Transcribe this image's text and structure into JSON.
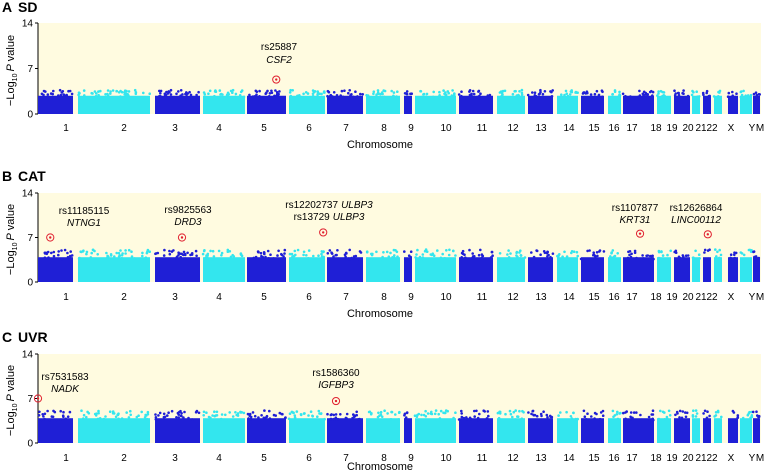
{
  "colors": {
    "dark": "#1f1fd6",
    "light": "#33e6ee",
    "background": "#fffbe0",
    "highlight": "#e0202f"
  },
  "y_label": "Log10 P value",
  "y_label_sign": "−",
  "y_label_base": "Log",
  "y_label_sub": "10",
  "y_label_p": "P",
  "y_label_rest": "value",
  "chart_data": [
    {
      "type": "scatter",
      "panel": "A",
      "title": "SD",
      "xlabel": "Chromosome",
      "ylabel": "−Log10 P value",
      "ylim": [
        0,
        14
      ],
      "yticks": [
        "0",
        "7",
        "14"
      ],
      "chromosomes": [
        "1",
        "2",
        "3",
        "4",
        "5",
        "6",
        "7",
        "8",
        "9",
        "10",
        "11",
        "12",
        "13",
        "14",
        "15",
        "16",
        "17",
        "18",
        "19",
        "20",
        "21",
        "22",
        "X",
        "Y",
        "M"
      ],
      "chrom_labels": [
        "1",
        "2",
        "3",
        "4",
        "5",
        "6",
        "7",
        "8",
        "9",
        "10",
        "11",
        "12",
        "13",
        "14",
        "15",
        "16",
        "17",
        "18",
        "19",
        "20",
        "21",
        "22",
        "X",
        "Y",
        "M"
      ],
      "baseline_max": 3.6,
      "highlights": [
        {
          "snp": "rs25887",
          "gene": "CSF2",
          "chromosome": "5",
          "pos": 0.75,
          "neglog10p": 5.3
        }
      ]
    },
    {
      "type": "scatter",
      "panel": "B",
      "title": "CAT",
      "xlabel": "Chromosome",
      "ylabel": "−Log10 P value",
      "ylim": [
        0,
        14
      ],
      "yticks": [
        "0",
        "7",
        "14"
      ],
      "chromosomes": [
        "1",
        "2",
        "3",
        "4",
        "5",
        "6",
        "7",
        "8",
        "9",
        "10",
        "11",
        "12",
        "13",
        "14",
        "15",
        "16",
        "17",
        "18",
        "19",
        "20",
        "21",
        "22",
        "X",
        "Y",
        "M"
      ],
      "chrom_labels": [
        "1",
        "2",
        "3",
        "4",
        "5",
        "6",
        "7",
        "8",
        "9",
        "10",
        "11",
        "12",
        "13",
        "14",
        "15",
        "16",
        "17",
        "18",
        "19",
        "20",
        "21",
        "22",
        "X",
        "Y",
        "M"
      ],
      "baseline_max": 5.0,
      "highlights": [
        {
          "snp": "rs11185115",
          "gene": "NTNG1",
          "chromosome": "1",
          "pos": 0.35,
          "neglog10p": 7.0
        },
        {
          "snp": "rs9825563",
          "gene": "DRD3",
          "chromosome": "3",
          "pos": 0.6,
          "neglog10p": 7.0
        },
        {
          "snp": "rs12202737",
          "gene": "ULBP3",
          "chromosome": "6",
          "pos": 0.95,
          "neglog10p": 7.8
        },
        {
          "snp": "rs13729",
          "gene": "ULBP3",
          "chromosome": "6",
          "pos": 0.95,
          "neglog10p": 7.8
        },
        {
          "snp": "rs1107877",
          "gene": "KRT31",
          "chromosome": "17",
          "pos": 0.55,
          "neglog10p": 7.6
        },
        {
          "snp": "rs12626864",
          "gene": "LINC00112",
          "chromosome": "21",
          "pos": 0.6,
          "neglog10p": 7.5
        }
      ]
    },
    {
      "type": "scatter",
      "panel": "C",
      "title": "UVR",
      "xlabel": "Chromosome",
      "ylabel": "−Log10 P value",
      "ylim": [
        0,
        14
      ],
      "yticks": [
        "0",
        "7",
        "14"
      ],
      "chromosomes": [
        "1",
        "2",
        "3",
        "4",
        "5",
        "6",
        "7",
        "8",
        "9",
        "10",
        "11",
        "12",
        "13",
        "14",
        "15",
        "16",
        "17",
        "18",
        "19",
        "20",
        "21",
        "22",
        "X",
        "Y",
        "M"
      ],
      "chrom_labels": [
        "1",
        "2",
        "3",
        "4",
        "5",
        "6",
        "7",
        "8",
        "9",
        "10",
        "11",
        "12",
        "13",
        "14",
        "15",
        "16",
        "17",
        "18",
        "19",
        "20",
        "21",
        "22",
        "X",
        "Y",
        "M"
      ],
      "baseline_max": 5.0,
      "highlights": [
        {
          "snp": "rs7531583",
          "gene": "NADK",
          "chromosome": "1",
          "pos": 0.0,
          "neglog10p": 7.0
        },
        {
          "snp": "rs1586360",
          "gene": "IGFBP3",
          "chromosome": "7",
          "pos": 0.25,
          "neglog10p": 6.6
        }
      ]
    }
  ]
}
